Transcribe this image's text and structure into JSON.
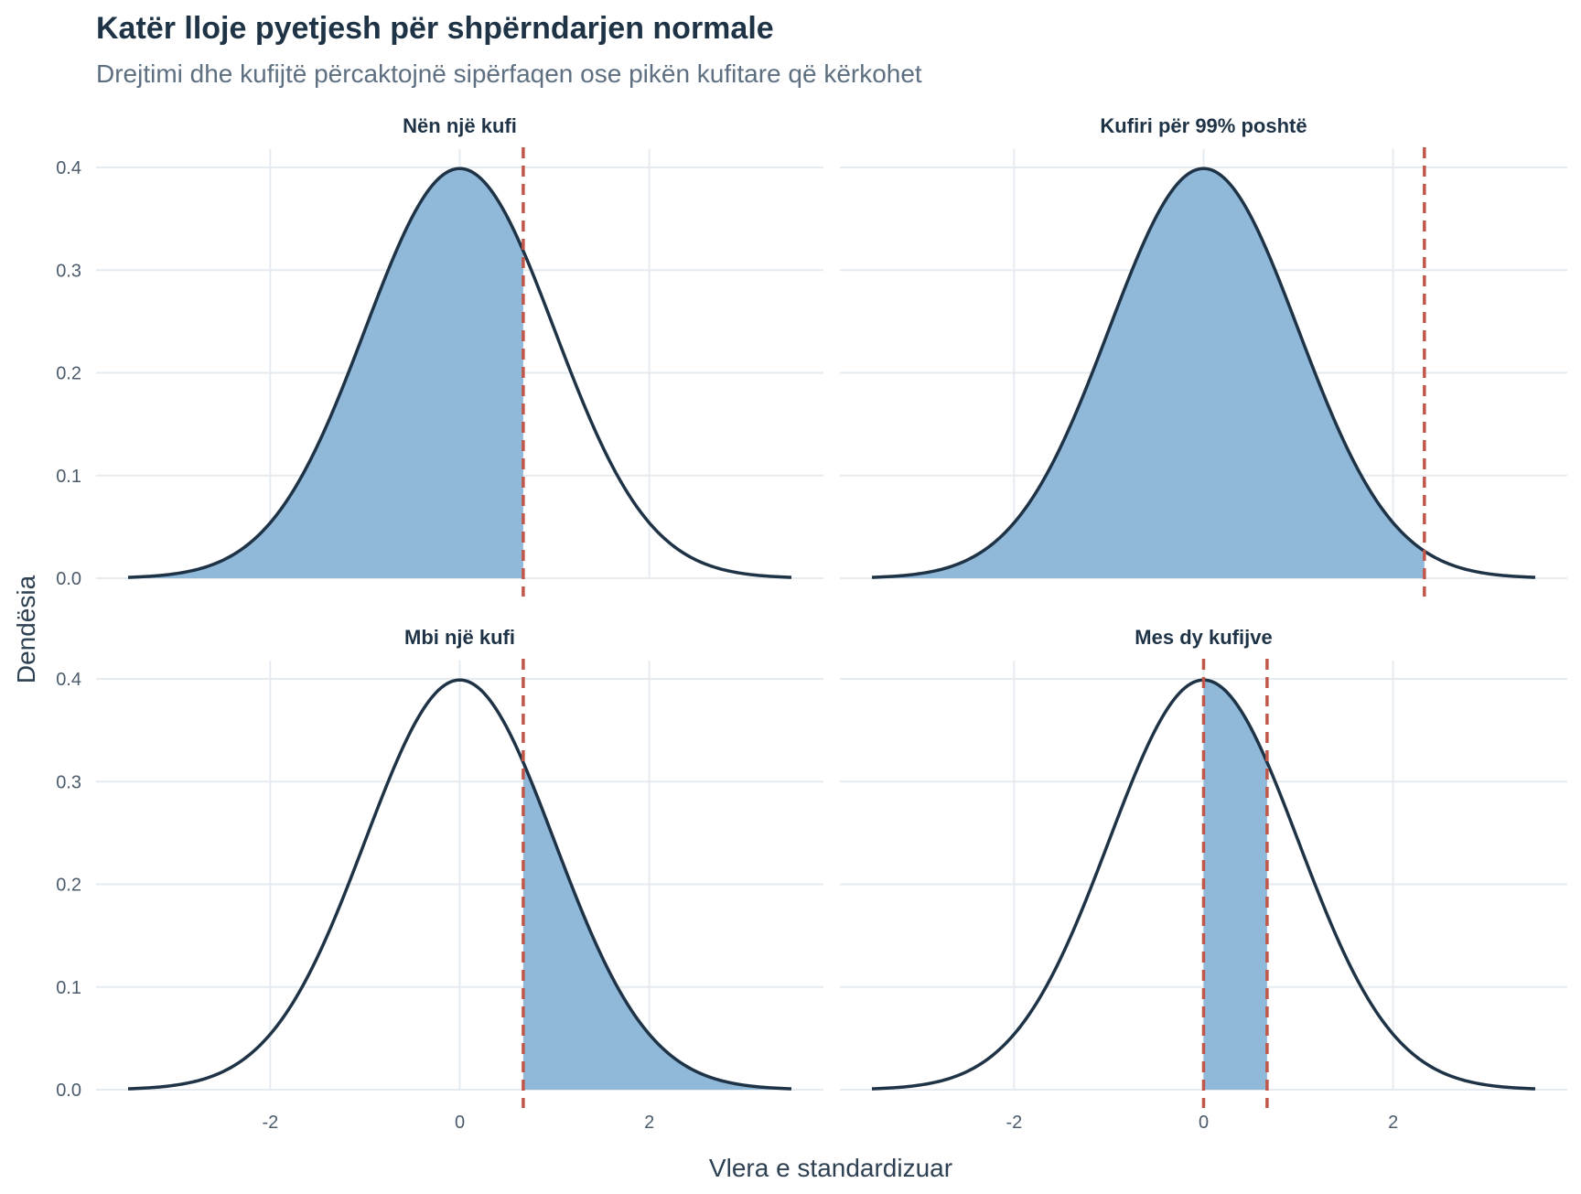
{
  "title": "Katër lloje pyetjesh për shpërndarjen normale",
  "subtitle": "Drejtimi dhe kufijtë përcaktojnë sipërfaqen ose pikën kufitare që kërkohet",
  "colors": {
    "fill": "#90b8d9",
    "curve": "#1f3347",
    "cutoff": "#c0574a",
    "grid": "#e6ebf0"
  },
  "chart_data": {
    "type": "area",
    "distribution": "normal",
    "mean": 0,
    "sd": 1,
    "xlabel": "Vlera e standardizuar",
    "ylabel": "Dendësia",
    "xlim": [
      -3.5,
      3.5
    ],
    "ylim": [
      0,
      0.4
    ],
    "x_ticks": [
      -2,
      0,
      2
    ],
    "x_tick_labels": [
      "-2",
      "0",
      "2"
    ],
    "y_ticks": [
      0,
      0.1,
      0.2,
      0.3,
      0.4
    ],
    "y_tick_labels": [
      "0.0",
      "0.1",
      "0.2",
      "0.3",
      "0.4"
    ],
    "grid": true,
    "panels": [
      {
        "title": "Nën një kufi",
        "shade_from": -3.5,
        "shade_to": 0.67,
        "cutoffs": [
          0.67
        ]
      },
      {
        "title": "Kufiri për 99% poshtë",
        "shade_from": -3.5,
        "shade_to": 2.33,
        "cutoffs": [
          2.33
        ]
      },
      {
        "title": "Mbi një kufi",
        "shade_from": 0.67,
        "shade_to": 3.5,
        "cutoffs": [
          0.67
        ]
      },
      {
        "title": "Mes dy kufijve",
        "shade_from": 0,
        "shade_to": 0.67,
        "cutoffs": [
          0,
          0.67
        ]
      }
    ]
  }
}
